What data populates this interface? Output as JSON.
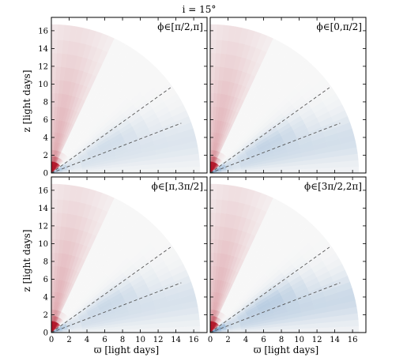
{
  "title": "i = 15°",
  "chart_data": {
    "type": "heatmap",
    "title": "i = 15°",
    "xlabel": "ϖ [light days]",
    "ylabel": "z [light days]",
    "xlim": [
      0,
      17.5
    ],
    "ylim": [
      0,
      17.5
    ],
    "xticks": [
      0,
      2,
      4,
      6,
      8,
      10,
      12,
      14,
      16
    ],
    "yticks": [
      0,
      2,
      4,
      6,
      8,
      10,
      12,
      14,
      16
    ],
    "outer_radius": 16.7,
    "colormap": "diverging red-white-blue",
    "colors": {
      "red": "#b2182b",
      "blue": "#2166ac",
      "white": "#f7f7f7"
    },
    "dashed_lines": [
      {
        "x": [
          0,
          13.4
        ],
        "y": [
          0,
          9.6
        ]
      },
      {
        "x": [
          0,
          14.6
        ],
        "y": [
          0,
          5.6
        ]
      }
    ],
    "panels": [
      {
        "label": "ϕ∈[π/2,π]",
        "position": "top-left",
        "blue_strength": 0.55
      },
      {
        "label": "ϕ∈[0,π/2]",
        "position": "top-right",
        "blue_strength": 0.75
      },
      {
        "label": "ϕ∈[π,3π/2]",
        "position": "bottom-left",
        "blue_strength": 0.65
      },
      {
        "label": "ϕ∈[3π/2,2π]",
        "position": "bottom-right",
        "blue_strength": 0.9
      }
    ]
  }
}
